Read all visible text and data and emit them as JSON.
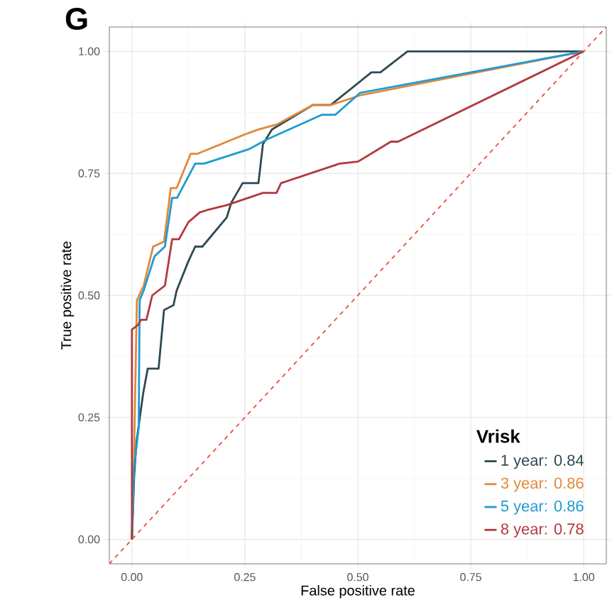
{
  "chart_data": {
    "type": "line",
    "title": "G",
    "xlabel": "False positive rate",
    "ylabel": "True positive rate",
    "legend_title": "Vrisk",
    "legend": "bottom right",
    "grid": true,
    "xlim": [
      -0.05,
      1.05
    ],
    "ylim": [
      -0.05,
      1.05
    ],
    "xticks": [
      {
        "value": 0,
        "label": "0.00"
      },
      {
        "value": 0.25,
        "label": "0.25"
      },
      {
        "value": 0.5,
        "label": "0.50"
      },
      {
        "value": 0.75,
        "label": "0.75"
      },
      {
        "value": 1,
        "label": "1.00"
      }
    ],
    "yticks": [
      {
        "value": 0,
        "label": "0.00"
      },
      {
        "value": 0.25,
        "label": "0.25"
      },
      {
        "value": 0.5,
        "label": "0.50"
      },
      {
        "value": 0.75,
        "label": "0.75"
      },
      {
        "value": 1,
        "label": "1.00"
      }
    ],
    "series": [
      {
        "name": "1 year:  0.84",
        "color": "#2e4a52",
        "line_style": "solid",
        "x": [
          0,
          0.005,
          0.01,
          0.025,
          0.035,
          0.059,
          0.071,
          0.092,
          0.099,
          0.125,
          0.14,
          0.156,
          0.21,
          0.22,
          0.245,
          0.28,
          0.29,
          0.31,
          0.4,
          0.44,
          0.53,
          0.55,
          0.61,
          1
        ],
        "values": [
          0,
          0.13,
          0.2,
          0.3,
          0.35,
          0.35,
          0.47,
          0.48,
          0.51,
          0.57,
          0.6,
          0.6,
          0.66,
          0.69,
          0.73,
          0.73,
          0.81,
          0.84,
          0.89,
          0.89,
          0.957,
          0.957,
          1,
          1
        ]
      },
      {
        "name": "3 year:  0.86",
        "color": "#e0883a",
        "line_style": "solid",
        "x": [
          0,
          0.004,
          0.011,
          0.026,
          0.047,
          0.071,
          0.086,
          0.099,
          0.13,
          0.144,
          0.25,
          0.28,
          0.32,
          0.4,
          0.44,
          0.505,
          1
        ],
        "values": [
          0,
          0.14,
          0.49,
          0.52,
          0.6,
          0.61,
          0.72,
          0.72,
          0.79,
          0.79,
          0.83,
          0.84,
          0.85,
          0.89,
          0.89,
          0.91,
          1
        ]
      },
      {
        "name": "5 year:  0.86",
        "color": "#1f9bd0",
        "line_style": "solid",
        "x": [
          0,
          0.004,
          0.015,
          0.017,
          0.026,
          0.05,
          0.073,
          0.089,
          0.1,
          0.14,
          0.16,
          0.26,
          0.3,
          0.42,
          0.45,
          0.505,
          1
        ],
        "values": [
          0,
          0.14,
          0.23,
          0.49,
          0.51,
          0.58,
          0.6,
          0.7,
          0.7,
          0.77,
          0.77,
          0.8,
          0.82,
          0.87,
          0.87,
          0.915,
          1
        ]
      },
      {
        "name": "8 year:  0.78",
        "color": "#b23a3f",
        "line_style": "solid",
        "x": [
          0,
          0,
          0.014,
          0.02,
          0.032,
          0.045,
          0.073,
          0.089,
          0.104,
          0.125,
          0.15,
          0.167,
          0.21,
          0.29,
          0.32,
          0.33,
          0.46,
          0.5,
          0.573,
          0.589,
          1
        ],
        "values": [
          0,
          0.43,
          0.44,
          0.45,
          0.45,
          0.5,
          0.52,
          0.615,
          0.615,
          0.65,
          0.67,
          0.675,
          0.685,
          0.71,
          0.71,
          0.73,
          0.77,
          0.774,
          0.815,
          0.815,
          1
        ]
      },
      {
        "color": "#e8503a",
        "line_style": "dashed",
        "x": [
          -0.05,
          1.05
        ],
        "values": [
          -0.05,
          1.05
        ]
      }
    ]
  }
}
